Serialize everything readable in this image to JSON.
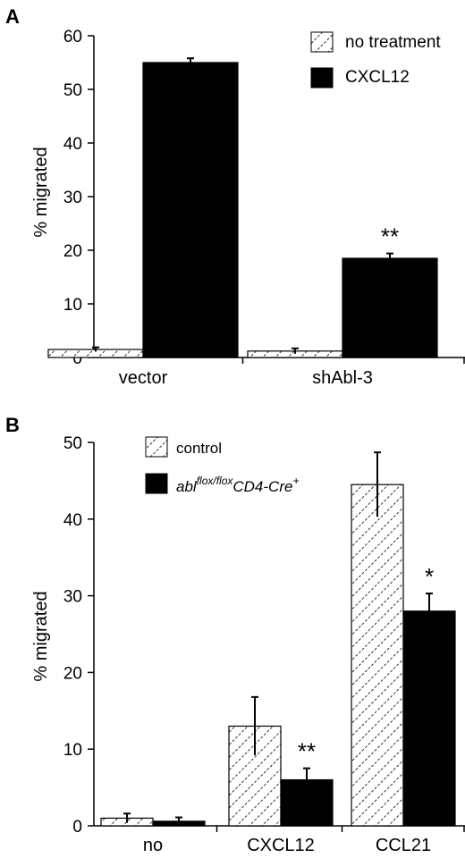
{
  "panels": [
    {
      "letter": "A",
      "ylabel": "% migrated",
      "categories": [
        "vector",
        "shAbl-3"
      ],
      "chart_data": {
        "type": "bar",
        "categories": [
          "vector",
          "shAbl-3"
        ],
        "ylabel": "% migrated",
        "xlabel": "",
        "ylim": [
          0,
          60
        ],
        "yticks": [
          0,
          10,
          20,
          30,
          40,
          50,
          60
        ],
        "series": [
          {
            "name": "no treatment",
            "values": [
              1.5,
              1.2
            ],
            "errors": [
              0.4,
              0.5
            ],
            "fill": "hatched"
          },
          {
            "name": "CXCL12",
            "values": [
              55,
              18.5
            ],
            "errors": [
              0.8,
              0.9
            ],
            "fill": "#000000"
          }
        ],
        "annotations": [
          {
            "category": "shAbl-3",
            "series": "CXCL12",
            "text": "**"
          }
        ],
        "legend": "top-right",
        "grid": false
      }
    },
    {
      "letter": "B",
      "ylabel": "% migrated",
      "categories": [
        "no",
        "CXCL12",
        "CCL21"
      ],
      "chart_data": {
        "type": "bar",
        "categories": [
          "no",
          "CXCL12",
          "CCL21"
        ],
        "ylabel": "% migrated",
        "xlabel": "",
        "ylim": [
          0,
          50
        ],
        "yticks": [
          0,
          10,
          20,
          30,
          40,
          50
        ],
        "series": [
          {
            "name": "control",
            "values": [
              1.0,
              13.0,
              44.5
            ],
            "errors": [
              0.6,
              3.8,
              4.2
            ],
            "fill": "hatched"
          },
          {
            "name": "abl flox/flox CD4-Cre+",
            "values": [
              0.6,
              6.0,
              28.0
            ],
            "errors": [
              0.5,
              1.5,
              2.3
            ],
            "fill": "#000000"
          }
        ],
        "annotations": [
          {
            "category": "CXCL12",
            "series": "abl flox/flox CD4-Cre+",
            "text": "**"
          },
          {
            "category": "CCL21",
            "series": "abl flox/flox CD4-Cre+",
            "text": "*"
          }
        ],
        "legend": "top-left",
        "grid": false
      }
    }
  ],
  "legend_b_second": {
    "base1": "abl",
    "sup1": "flox/flox",
    "base2": "CD4-Cre",
    "sup2": "+"
  }
}
